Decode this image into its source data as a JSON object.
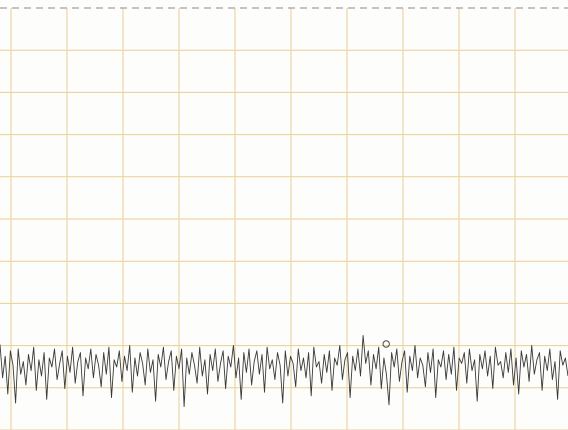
{
  "chart_data": {
    "type": "line",
    "title": "",
    "xlabel": "",
    "ylabel": "",
    "grid": true,
    "legend": "none",
    "reference_line": {
      "style": "dashed",
      "position": "top"
    },
    "grid_divisions": {
      "x": 10,
      "y": 10
    },
    "ylim": [
      0,
      10
    ],
    "marker": {
      "shape": "circle",
      "x_fraction": 0.68,
      "level": 1.85
    },
    "series": [
      {
        "values": [
          0.95,
          0.58,
          0.82,
          0.4,
          0.88,
          0.72,
          0.3,
          0.9,
          0.62,
          0.76,
          0.5,
          0.84,
          0.66,
          0.92,
          0.44,
          0.78,
          0.6,
          0.86,
          0.34,
          0.8,
          0.7,
          0.9,
          0.56,
          0.74,
          0.88,
          0.46,
          0.82,
          0.64,
          0.92,
          0.52,
          0.76,
          0.86,
          0.38,
          0.8,
          0.68,
          0.9,
          0.58,
          0.84,
          0.72,
          0.48,
          0.86,
          0.62,
          0.92,
          0.36,
          0.78,
          0.7,
          0.88,
          0.54,
          0.82,
          0.66,
          0.94,
          0.42,
          0.8,
          0.6,
          0.86,
          0.74,
          0.5,
          0.9,
          0.64,
          0.78,
          0.32,
          0.84,
          0.7,
          0.92,
          0.56,
          0.76,
          0.88,
          0.44,
          0.82,
          0.68,
          0.9,
          0.26,
          0.8,
          0.62,
          0.86,
          0.72,
          0.52,
          0.92,
          0.6,
          0.78,
          0.4,
          0.84,
          0.66,
          0.9,
          0.54,
          0.74,
          0.88,
          0.46,
          0.82,
          0.7,
          0.94,
          0.58,
          0.8,
          0.34,
          0.86,
          0.64,
          0.9,
          0.5,
          0.76,
          0.88,
          0.62,
          0.84,
          0.42,
          0.92,
          0.68,
          0.78,
          0.56,
          0.86,
          0.72,
          0.3,
          0.88,
          0.6,
          0.82,
          0.74,
          0.48,
          0.9,
          0.66,
          0.8,
          0.58,
          0.86,
          0.38,
          0.92,
          0.7,
          0.76,
          0.52,
          0.84,
          0.64,
          0.88,
          0.44,
          0.8,
          0.72,
          0.94,
          0.56,
          0.78,
          0.86,
          0.36,
          0.82,
          0.66,
          0.9,
          0.6,
          1.05,
          0.74,
          0.88,
          0.5,
          0.84,
          0.68,
          0.92,
          0.46,
          0.8,
          0.62,
          0.28,
          0.86,
          0.7,
          0.9,
          0.54,
          0.76,
          0.88,
          0.42,
          0.82,
          0.66,
          0.94,
          0.58,
          0.8,
          0.72,
          0.48,
          0.86,
          0.64,
          0.9,
          0.36,
          0.78,
          0.7,
          0.88,
          0.56,
          0.84,
          0.62,
          0.92,
          0.44,
          0.8,
          0.74,
          0.86,
          0.52,
          0.9,
          0.66,
          0.78,
          0.32,
          0.84,
          0.68,
          0.88,
          0.6,
          0.82,
          0.46,
          0.92,
          0.72,
          0.76,
          0.58,
          0.86,
          0.64,
          0.9,
          0.5,
          0.8,
          0.4,
          0.88,
          0.7,
          0.84,
          0.54,
          0.94,
          0.62,
          0.78,
          0.86,
          0.44,
          0.82,
          0.66,
          0.9,
          0.56,
          0.76,
          0.34,
          0.88,
          0.72,
          0.8,
          0.6
        ]
      }
    ]
  },
  "colors": {
    "background": "#fdfdfb",
    "grid": "#e9cf95",
    "reference": "#8c8c8c",
    "trace": "#3a3a3a",
    "marker": "#4a4a4a"
  }
}
